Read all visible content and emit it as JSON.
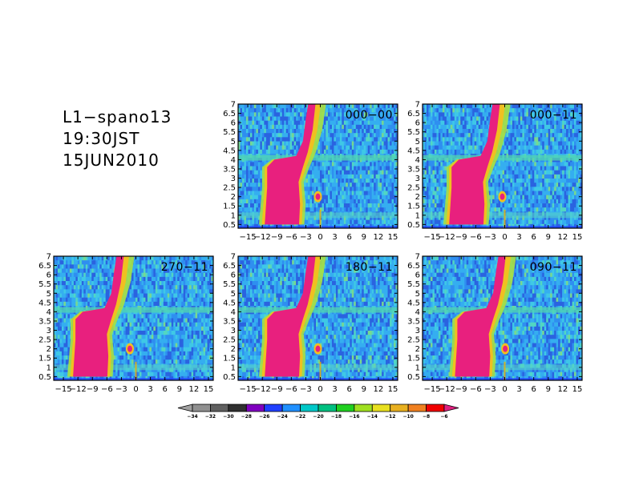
{
  "title_lines": [
    "L1−spano13",
    "19:30JST",
    "15JUN2010"
  ],
  "chart_data": {
    "type": "heatmap",
    "x_range": [
      -17,
      16
    ],
    "y_range": [
      0.3,
      7
    ],
    "x_ticks": [
      -15,
      -12,
      -9,
      -6,
      -3,
      0,
      3,
      6,
      9,
      12,
      15
    ],
    "x_tick_labels": [
      "−15",
      "−12",
      "−9",
      "−6",
      "−3",
      "0",
      "3",
      "6",
      "9",
      "12",
      "15"
    ],
    "y_ticks": [
      0.5,
      1,
      1.5,
      2,
      2.5,
      3,
      3.5,
      4,
      4.5,
      5,
      5.5,
      6,
      6.5,
      7
    ],
    "y_tick_labels": [
      "0.5",
      "1",
      "1.5",
      "2",
      "2.5",
      "3",
      "3.5",
      "4",
      "4.5",
      "5",
      "5.5",
      "6",
      "6.5",
      "7"
    ],
    "panels": [
      {
        "label": "000−00",
        "position": "top-middle"
      },
      {
        "label": "000−11",
        "position": "top-right"
      },
      {
        "label": "270−11",
        "position": "bottom-left"
      },
      {
        "label": "180−11",
        "position": "bottom-middle"
      },
      {
        "label": "090−11",
        "position": "bottom-right"
      }
    ],
    "colorbar": {
      "levels": [
        "−34",
        "−32",
        "−30",
        "−28",
        "−26",
        "−24",
        "−22",
        "−20",
        "−18",
        "−16",
        "−14",
        "−12",
        "−10",
        "−8",
        "−6"
      ],
      "colors": [
        "#a0a0a0",
        "#909090",
        "#606060",
        "#303030",
        "#8000c0",
        "#2040ff",
        "#2090ff",
        "#00c8c8",
        "#00c080",
        "#20d020",
        "#a0e020",
        "#e8e020",
        "#e8b020",
        "#f08020",
        "#f00000",
        "#e02080"
      ],
      "extend": "both"
    }
  }
}
